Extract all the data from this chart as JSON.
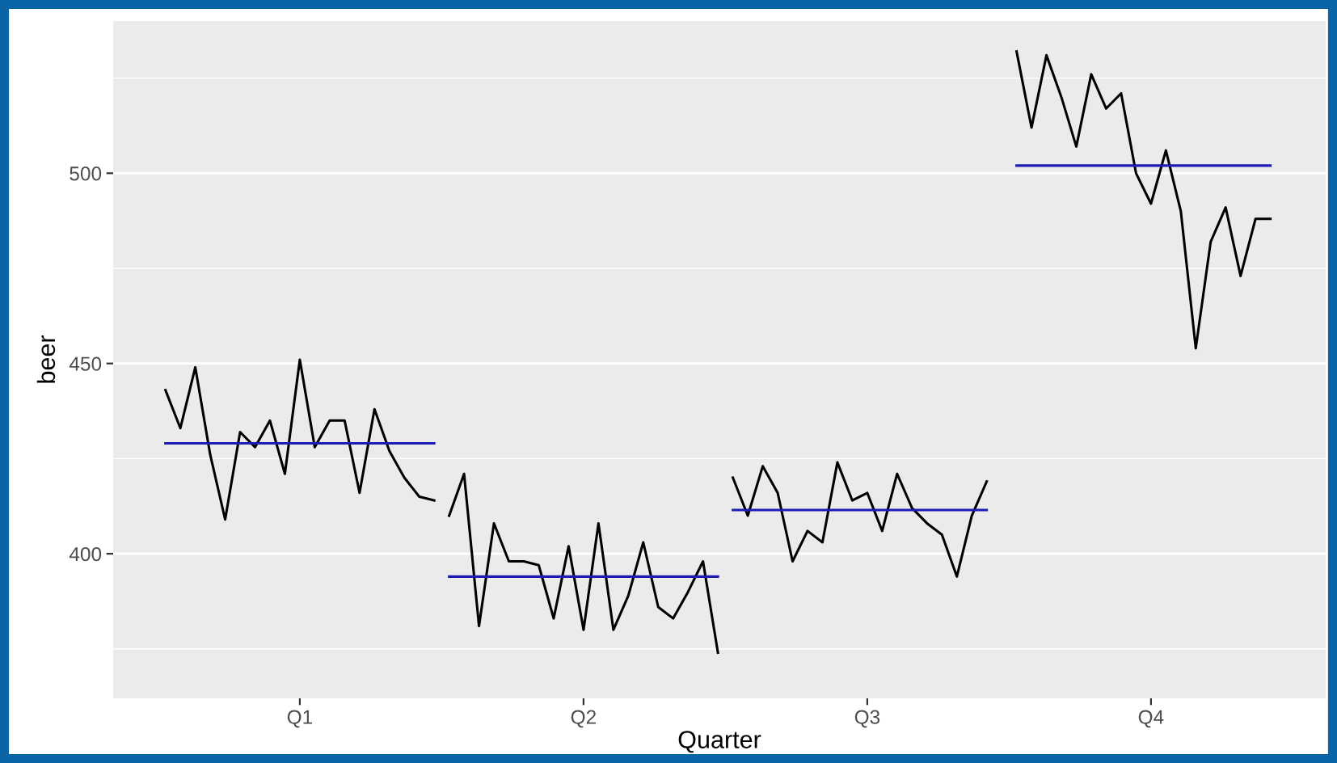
{
  "chart_data": {
    "type": "line",
    "xlabel": "Quarter",
    "ylabel": "beer",
    "categories": [
      null,
      null,
      null,
      null,
      null,
      null,
      null,
      null,
      null,
      "Q1",
      null,
      null,
      null,
      null,
      null,
      null,
      null,
      null,
      null,
      null,
      null,
      null,
      null,
      null,
      null,
      null,
      null,
      null,
      "Q2",
      null,
      null,
      null,
      null,
      null,
      null,
      null,
      null,
      null,
      null,
      null,
      null,
      null,
      null,
      null,
      null,
      null,
      null,
      "Q3",
      null,
      null,
      null,
      null,
      null,
      null,
      null,
      null,
      null,
      null,
      null,
      null,
      null,
      null,
      null,
      null,
      null,
      null,
      "Q4",
      null,
      null,
      null,
      null,
      null,
      null,
      null,
      null,
      null
    ],
    "ylim": [
      362,
      540
    ],
    "yticks": [
      400,
      450,
      500
    ],
    "grid": "y",
    "marker": "none",
    "line_style": "solid",
    "series": [
      {
        "color": "#000000",
        "values": [
          443,
          433,
          449,
          426,
          409,
          432,
          428,
          435,
          421,
          451,
          428,
          435,
          435,
          416,
          438,
          427,
          420,
          415,
          414,
          null,
          null,
          null,
          null,
          null,
          null,
          null,
          null,
          null,
          null,
          null,
          null,
          null,
          null,
          null,
          null,
          null,
          null,
          null,
          null,
          null,
          null,
          null,
          null,
          null,
          null,
          null,
          null,
          null,
          null,
          null,
          null,
          null,
          null,
          null,
          null,
          null,
          null,
          null,
          null,
          null,
          null,
          null,
          null,
          null,
          null,
          null,
          null,
          null,
          null,
          null,
          null,
          null,
          null,
          null,
          null,
          null
        ]
      },
      {
        "color": "#000000",
        "values": [
          null,
          null,
          null,
          null,
          null,
          null,
          null,
          null,
          null,
          null,
          null,
          null,
          null,
          null,
          null,
          null,
          null,
          null,
          null,
          410,
          421,
          381,
          408,
          398,
          398,
          397,
          383,
          402,
          380,
          408,
          380,
          389,
          403,
          386,
          383,
          390,
          398,
          374,
          null,
          null,
          null,
          null,
          null,
          null,
          null,
          null,
          null,
          null,
          null,
          null,
          null,
          null,
          null,
          null,
          null,
          null,
          null,
          null,
          null,
          null,
          null,
          null,
          null,
          null,
          null,
          null,
          null,
          null,
          null,
          null,
          null,
          null,
          null,
          null,
          null,
          null
        ]
      },
      {
        "color": "#000000",
        "values": [
          null,
          null,
          null,
          null,
          null,
          null,
          null,
          null,
          null,
          null,
          null,
          null,
          null,
          null,
          null,
          null,
          null,
          null,
          null,
          null,
          null,
          null,
          null,
          null,
          null,
          null,
          null,
          null,
          null,
          null,
          null,
          null,
          null,
          null,
          null,
          null,
          null,
          null,
          420,
          410,
          423,
          416,
          398,
          406,
          403,
          424,
          414,
          416,
          406,
          421,
          412,
          408,
          405,
          394,
          410,
          419,
          null,
          null,
          null,
          null,
          null,
          null,
          null,
          null,
          null,
          null,
          null,
          null,
          null,
          null,
          null,
          null,
          null,
          null,
          null,
          null
        ]
      },
      {
        "color": "#000000",
        "values": [
          null,
          null,
          null,
          null,
          null,
          null,
          null,
          null,
          null,
          null,
          null,
          null,
          null,
          null,
          null,
          null,
          null,
          null,
          null,
          null,
          null,
          null,
          null,
          null,
          null,
          null,
          null,
          null,
          null,
          null,
          null,
          null,
          null,
          null,
          null,
          null,
          null,
          null,
          null,
          null,
          null,
          null,
          null,
          null,
          null,
          null,
          null,
          null,
          null,
          null,
          null,
          null,
          null,
          null,
          null,
          null,
          null,
          532,
          512,
          531,
          520,
          507,
          526,
          517,
          521,
          500,
          492,
          506,
          490,
          454,
          482,
          491,
          473,
          488,
          488,
          null
        ]
      },
      {
        "color": "#1c1cb4",
        "values": [
          429,
          429,
          429,
          429,
          429,
          429,
          429,
          429,
          429,
          429,
          429,
          429,
          429,
          429,
          429,
          429,
          429,
          429,
          429,
          null,
          null,
          null,
          null,
          null,
          null,
          null,
          null,
          null,
          null,
          null,
          null,
          null,
          null,
          null,
          null,
          null,
          null,
          null,
          null,
          null,
          null,
          null,
          null,
          null,
          null,
          null,
          null,
          null,
          null,
          null,
          null,
          null,
          null,
          null,
          null,
          null,
          null,
          null,
          null,
          null,
          null,
          null,
          null,
          null,
          null,
          null,
          null,
          null,
          null,
          null,
          null,
          null,
          null,
          null,
          null,
          null
        ]
      },
      {
        "color": "#1c1cb4",
        "values": [
          null,
          null,
          null,
          null,
          null,
          null,
          null,
          null,
          null,
          null,
          null,
          null,
          null,
          null,
          null,
          null,
          null,
          null,
          null,
          394,
          394,
          394,
          394,
          394,
          394,
          394,
          394,
          394,
          394,
          394,
          394,
          394,
          394,
          394,
          394,
          394,
          394,
          394,
          null,
          null,
          null,
          null,
          null,
          null,
          null,
          null,
          null,
          null,
          null,
          null,
          null,
          null,
          null,
          null,
          null,
          null,
          null,
          null,
          null,
          null,
          null,
          null,
          null,
          null,
          null,
          null,
          null,
          null,
          null,
          null,
          null,
          null,
          null,
          null,
          null,
          null
        ]
      },
      {
        "color": "#1c1cb4",
        "values": [
          null,
          null,
          null,
          null,
          null,
          null,
          null,
          null,
          null,
          null,
          null,
          null,
          null,
          null,
          null,
          null,
          null,
          null,
          null,
          null,
          null,
          null,
          null,
          null,
          null,
          null,
          null,
          null,
          null,
          null,
          null,
          null,
          null,
          null,
          null,
          null,
          null,
          null,
          411.5,
          411.5,
          411.5,
          411.5,
          411.5,
          411.5,
          411.5,
          411.5,
          411.5,
          411.5,
          411.5,
          411.5,
          411.5,
          411.5,
          411.5,
          411.5,
          411.5,
          411.5,
          null,
          null,
          null,
          null,
          null,
          null,
          null,
          null,
          null,
          null,
          null,
          null,
          null,
          null,
          null,
          null,
          null,
          null,
          null,
          null
        ]
      },
      {
        "color": "#1c1cb4",
        "values": [
          null,
          null,
          null,
          null,
          null,
          null,
          null,
          null,
          null,
          null,
          null,
          null,
          null,
          null,
          null,
          null,
          null,
          null,
          null,
          null,
          null,
          null,
          null,
          null,
          null,
          null,
          null,
          null,
          null,
          null,
          null,
          null,
          null,
          null,
          null,
          null,
          null,
          null,
          null,
          null,
          null,
          null,
          null,
          null,
          null,
          null,
          null,
          null,
          null,
          null,
          null,
          null,
          null,
          null,
          null,
          null,
          null,
          502,
          502,
          502,
          502,
          502,
          502,
          502,
          502,
          502,
          502,
          502,
          502,
          502,
          502,
          502,
          502,
          502,
          502,
          null
        ]
      }
    ]
  }
}
